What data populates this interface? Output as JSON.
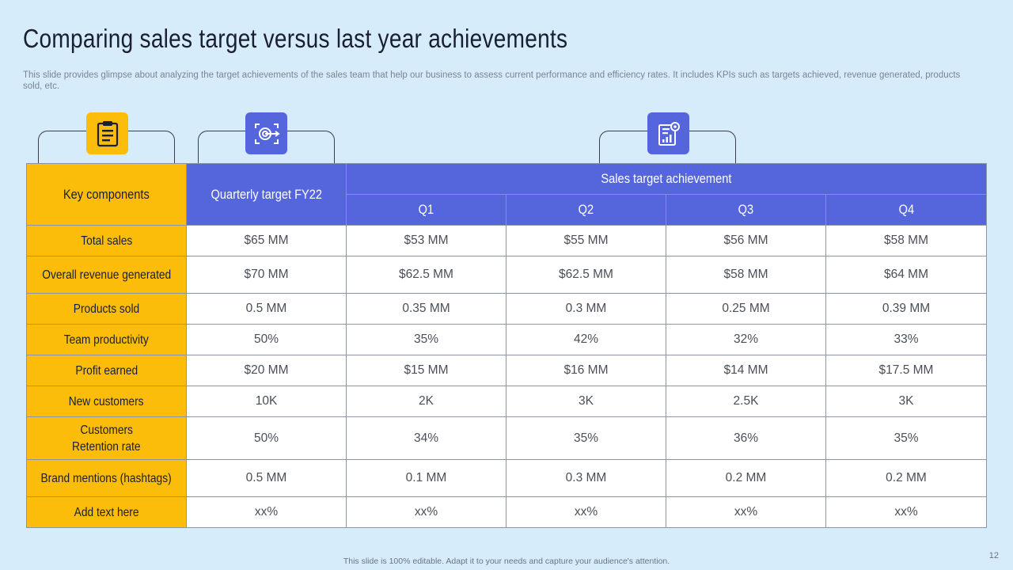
{
  "title": "Comparing sales target versus last year achievements",
  "subtitle": "This slide provides glimpse about analyzing the target achievements of the sales team that help our business to assess current performance and efficiency rates. It includes KPIs such as targets achieved, revenue generated, products sold, etc.",
  "icons": [
    {
      "name": "clipboard-icon",
      "color": "#fbbc0a"
    },
    {
      "name": "target-icon",
      "color": "#5566dd"
    },
    {
      "name": "report-chart-icon",
      "color": "#5566dd"
    }
  ],
  "colors": {
    "accent_yellow": "#fbbc0a",
    "accent_blue": "#5566dd",
    "background": "#d6ecfb"
  },
  "table": {
    "header_key": "Key components",
    "header_target": "Quarterly target FY22",
    "header_group": "Sales target achievement",
    "quarters": [
      "Q1",
      "Q2",
      "Q3",
      "Q4"
    ],
    "rows": [
      {
        "label": [
          "Total sales"
        ],
        "target": "$65 MM",
        "q": [
          "$53 MM",
          "$55 MM",
          "$56 MM",
          "$58 MM"
        ]
      },
      {
        "label": [
          "Overall revenue generated"
        ],
        "target": "$70 MM",
        "q": [
          "$62.5 MM",
          "$62.5 MM",
          "$58 MM",
          "$64 MM"
        ]
      },
      {
        "label": [
          "Products sold"
        ],
        "target": "0.5 MM",
        "q": [
          "0.35 MM",
          "0.3 MM",
          "0.25 MM",
          "0.39 MM"
        ]
      },
      {
        "label": [
          "Team productivity"
        ],
        "target": "50%",
        "q": [
          "35%",
          "42%",
          "32%",
          "33%"
        ]
      },
      {
        "label": [
          "Profit earned"
        ],
        "target": "$20 MM",
        "q": [
          "$15 MM",
          "$16 MM",
          "$14 MM",
          "$17.5 MM"
        ]
      },
      {
        "label": [
          "New customers"
        ],
        "target": "10K",
        "q": [
          "2K",
          "3K",
          "2.5K",
          "3K"
        ]
      },
      {
        "label": [
          "Customers",
          "Retention rate"
        ],
        "target": "50%",
        "q": [
          "34%",
          "35%",
          "36%",
          "35%"
        ]
      },
      {
        "label": [
          "Brand mentions (hashtags)"
        ],
        "target": "0.5 MM",
        "q": [
          "0.1 MM",
          "0.3 MM",
          "0.2 MM",
          "0.2 MM"
        ]
      },
      {
        "label": [
          "Add text here"
        ],
        "target": "xx%",
        "q": [
          "xx%",
          "xx%",
          "xx%",
          "xx%"
        ]
      }
    ]
  },
  "footer": "This slide is 100% editable. Adapt it to your needs and capture your audience's attention.",
  "page_number": "12"
}
